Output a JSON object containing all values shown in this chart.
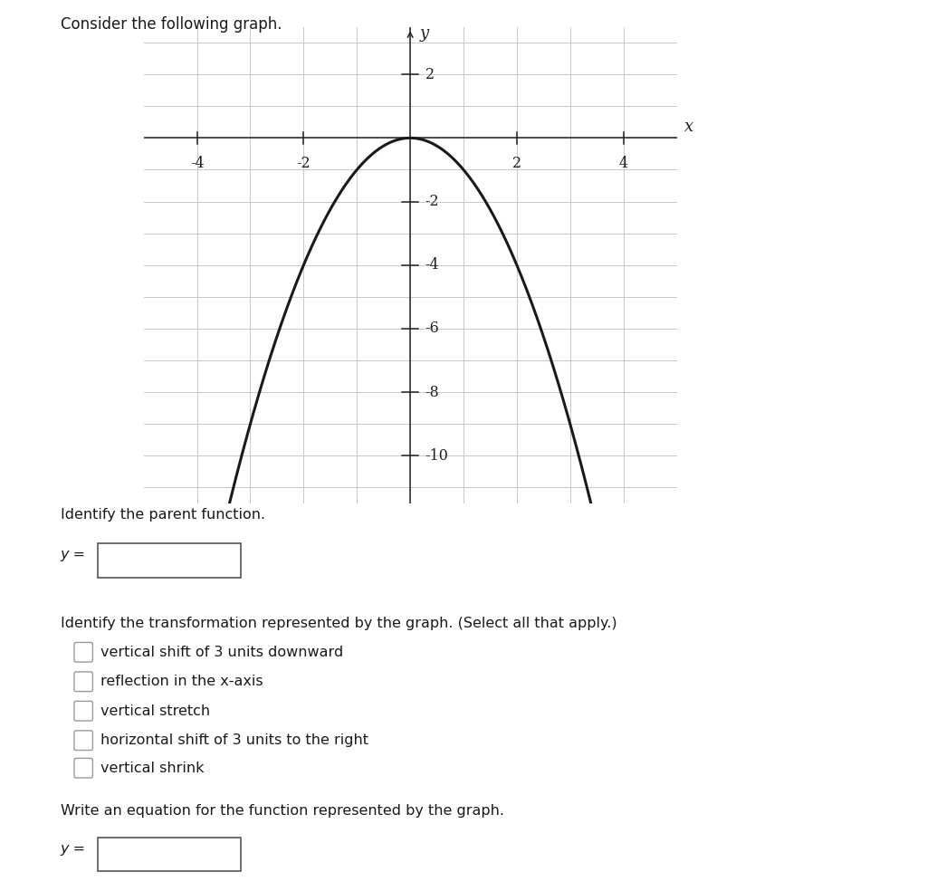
{
  "title_text": "Consider the following graph.",
  "graph_xlim": [
    -5,
    5
  ],
  "graph_ylim": [
    -11.5,
    3.5
  ],
  "x_ticks": [
    -4,
    -2,
    2,
    4
  ],
  "y_ticks": [
    -10,
    -8,
    -6,
    -4,
    -2,
    2
  ],
  "curve_color": "#1a1a1a",
  "curve_lw": 2.2,
  "grid_color": "#c8c8c8",
  "axis_color": "#222222",
  "background_color": "#ffffff",
  "question1": "Identify the parent function.",
  "question2": "Identify the transformation represented by the graph. (Select all that apply.)",
  "question3": "Write an equation for the function represented by the graph.",
  "options": [
    "vertical shift of 3 units downward",
    "reflection in the x-axis",
    "vertical stretch",
    "horizontal shift of 3 units to the right",
    "vertical shrink"
  ],
  "ylabel_text": "y",
  "xlabel_text": "x"
}
